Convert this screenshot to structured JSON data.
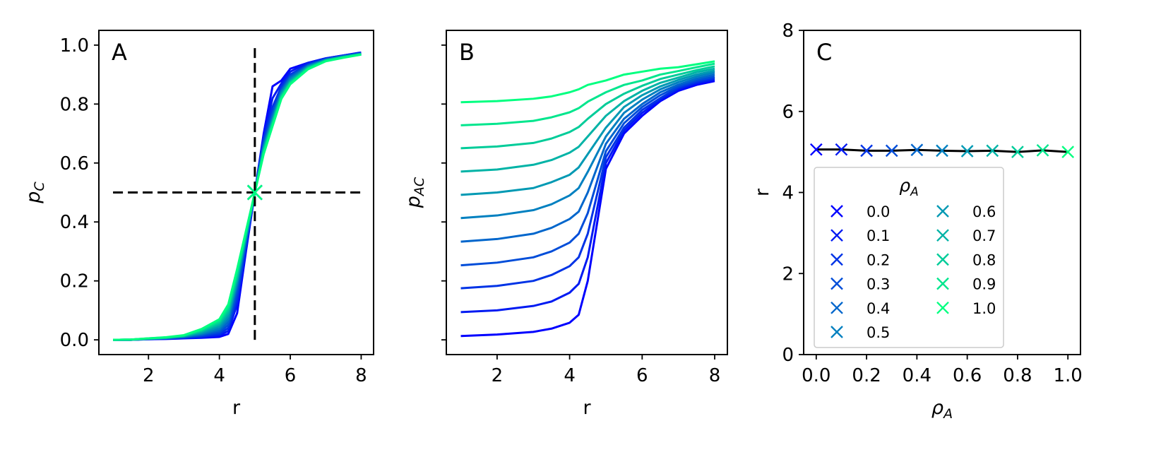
{
  "chart_data": [
    {
      "panel": "A",
      "type": "line",
      "panel_label": "A",
      "xlabel": "r",
      "ylabel_main": "p",
      "ylabel_sub": "C",
      "xlim": [
        0.6,
        8.35
      ],
      "ylim": [
        -0.05,
        1.05
      ],
      "xticks": [
        2,
        4,
        6,
        8
      ],
      "yticks": [
        0.0,
        0.2,
        0.4,
        0.6,
        0.8,
        1.0
      ],
      "ytick_labels": [
        "0.0",
        "0.2",
        "0.4",
        "0.6",
        "0.8",
        "1.0"
      ],
      "grid": false,
      "color_start": "#0000ff",
      "color_end": "#00ff80",
      "x": [
        1.0,
        1.5,
        2.0,
        2.5,
        3.0,
        3.5,
        4.0,
        4.25,
        4.5,
        4.75,
        5.0,
        5.25,
        5.5,
        5.75,
        6.0,
        6.5,
        7.0,
        7.5,
        8.0
      ],
      "series": [
        {
          "values": [
            0.0,
            0.0,
            0.002,
            0.003,
            0.005,
            0.007,
            0.01,
            0.02,
            0.09,
            0.3,
            0.5,
            0.7,
            0.86,
            0.88,
            0.92,
            0.94,
            0.955,
            0.965,
            0.975
          ]
        },
        {
          "values": [
            0.0,
            0.0,
            0.002,
            0.004,
            0.006,
            0.009,
            0.015,
            0.03,
            0.12,
            0.31,
            0.5,
            0.69,
            0.82,
            0.87,
            0.91,
            0.94,
            0.955,
            0.965,
            0.974
          ]
        },
        {
          "values": [
            0.0,
            0.0,
            0.003,
            0.005,
            0.008,
            0.012,
            0.02,
            0.04,
            0.14,
            0.32,
            0.5,
            0.68,
            0.79,
            0.86,
            0.9,
            0.935,
            0.953,
            0.964,
            0.973
          ]
        },
        {
          "values": [
            0.0,
            0.0,
            0.003,
            0.005,
            0.009,
            0.015,
            0.026,
            0.05,
            0.16,
            0.33,
            0.5,
            0.67,
            0.77,
            0.85,
            0.895,
            0.932,
            0.952,
            0.963,
            0.972
          ]
        },
        {
          "values": [
            0.0,
            0.0,
            0.003,
            0.006,
            0.01,
            0.018,
            0.032,
            0.06,
            0.18,
            0.34,
            0.5,
            0.66,
            0.76,
            0.845,
            0.89,
            0.93,
            0.951,
            0.962,
            0.971
          ]
        },
        {
          "values": [
            0.0,
            0.0,
            0.004,
            0.006,
            0.011,
            0.021,
            0.038,
            0.07,
            0.19,
            0.345,
            0.5,
            0.655,
            0.75,
            0.84,
            0.885,
            0.928,
            0.95,
            0.961,
            0.97
          ]
        },
        {
          "values": [
            0.0,
            0.001,
            0.004,
            0.007,
            0.012,
            0.024,
            0.045,
            0.08,
            0.2,
            0.35,
            0.5,
            0.65,
            0.745,
            0.835,
            0.88,
            0.926,
            0.949,
            0.96,
            0.97
          ]
        },
        {
          "values": [
            0.0,
            0.001,
            0.004,
            0.007,
            0.013,
            0.028,
            0.052,
            0.09,
            0.21,
            0.355,
            0.5,
            0.645,
            0.74,
            0.83,
            0.876,
            0.924,
            0.948,
            0.96,
            0.969
          ]
        },
        {
          "values": [
            0.0,
            0.001,
            0.004,
            0.008,
            0.014,
            0.031,
            0.058,
            0.1,
            0.22,
            0.36,
            0.5,
            0.64,
            0.735,
            0.826,
            0.873,
            0.922,
            0.947,
            0.959,
            0.969
          ]
        },
        {
          "values": [
            0.0,
            0.001,
            0.005,
            0.008,
            0.015,
            0.034,
            0.064,
            0.11,
            0.23,
            0.365,
            0.5,
            0.635,
            0.73,
            0.822,
            0.87,
            0.92,
            0.946,
            0.958,
            0.968
          ]
        },
        {
          "values": [
            0.0,
            0.001,
            0.005,
            0.009,
            0.016,
            0.037,
            0.07,
            0.12,
            0.24,
            0.37,
            0.5,
            0.63,
            0.725,
            0.818,
            0.867,
            0.918,
            0.945,
            0.957,
            0.968
          ]
        }
      ],
      "crosshair": {
        "x": 5.0,
        "y": 0.5,
        "vline_y": [
          0.0,
          1.0
        ],
        "hline_x": [
          1.0,
          8.0
        ],
        "color": "#000000"
      },
      "markers": [
        {
          "x": 5.0,
          "y": 0.5
        }
      ]
    },
    {
      "panel": "B",
      "type": "line",
      "panel_label": "B",
      "xlabel": "r",
      "ylabel_main": "p",
      "ylabel_sub": "AC",
      "xlim": [
        0.6,
        8.35
      ],
      "ylim": [
        -0.05,
        1.05
      ],
      "xticks": [
        2,
        4,
        6,
        8
      ],
      "yticks": [
        0.0,
        0.2,
        0.4,
        0.6,
        0.8,
        1.0
      ],
      "ytick_labels": [],
      "grid": false,
      "color_start": "#0000ff",
      "color_end": "#00ff80",
      "x": [
        1.0,
        2.0,
        3.0,
        3.5,
        4.0,
        4.25,
        4.5,
        5.0,
        5.5,
        6.0,
        6.5,
        7.0,
        7.5,
        8.0
      ],
      "series": [
        {
          "values": [
            0.013,
            0.018,
            0.027,
            0.038,
            0.058,
            0.085,
            0.2,
            0.58,
            0.7,
            0.76,
            0.81,
            0.845,
            0.865,
            0.878
          ]
        },
        {
          "values": [
            0.094,
            0.1,
            0.115,
            0.13,
            0.16,
            0.19,
            0.28,
            0.6,
            0.71,
            0.77,
            0.815,
            0.85,
            0.87,
            0.883
          ]
        },
        {
          "values": [
            0.175,
            0.183,
            0.2,
            0.22,
            0.25,
            0.28,
            0.36,
            0.62,
            0.72,
            0.78,
            0.82,
            0.855,
            0.875,
            0.888
          ]
        },
        {
          "values": [
            0.253,
            0.262,
            0.28,
            0.3,
            0.33,
            0.36,
            0.43,
            0.64,
            0.735,
            0.79,
            0.83,
            0.86,
            0.88,
            0.893
          ]
        },
        {
          "values": [
            0.333,
            0.342,
            0.36,
            0.38,
            0.41,
            0.435,
            0.5,
            0.665,
            0.75,
            0.8,
            0.84,
            0.866,
            0.886,
            0.9
          ]
        },
        {
          "values": [
            0.413,
            0.422,
            0.44,
            0.46,
            0.49,
            0.515,
            0.57,
            0.69,
            0.77,
            0.815,
            0.85,
            0.874,
            0.893,
            0.907
          ]
        },
        {
          "values": [
            0.492,
            0.5,
            0.515,
            0.535,
            0.56,
            0.585,
            0.63,
            0.72,
            0.79,
            0.83,
            0.86,
            0.882,
            0.9,
            0.913
          ]
        },
        {
          "values": [
            0.571,
            0.578,
            0.594,
            0.61,
            0.635,
            0.655,
            0.69,
            0.76,
            0.81,
            0.845,
            0.872,
            0.89,
            0.908,
            0.92
          ]
        },
        {
          "values": [
            0.65,
            0.656,
            0.668,
            0.683,
            0.705,
            0.722,
            0.75,
            0.8,
            0.835,
            0.862,
            0.885,
            0.9,
            0.915,
            0.928
          ]
        },
        {
          "values": [
            0.728,
            0.733,
            0.743,
            0.755,
            0.772,
            0.786,
            0.808,
            0.84,
            0.865,
            0.88,
            0.9,
            0.912,
            0.925,
            0.937
          ]
        },
        {
          "values": [
            0.806,
            0.81,
            0.818,
            0.826,
            0.84,
            0.85,
            0.865,
            0.88,
            0.9,
            0.91,
            0.92,
            0.925,
            0.935,
            0.945
          ]
        }
      ]
    },
    {
      "panel": "C",
      "type": "scatter",
      "panel_label": "C",
      "xlabel_main": "ρ",
      "xlabel_sub": "A",
      "ylabel": "r",
      "xlim": [
        -0.05,
        1.05
      ],
      "ylim": [
        0,
        8
      ],
      "xticks": [
        0.0,
        0.2,
        0.4,
        0.6,
        0.8,
        1.0
      ],
      "xtick_labels": [
        "0.0",
        "0.2",
        "0.4",
        "0.6",
        "0.8",
        "1.0"
      ],
      "yticks": [
        0,
        2,
        4,
        6,
        8
      ],
      "ytick_labels": [
        "0",
        "2",
        "4",
        "6",
        "8"
      ],
      "grid": false,
      "line_color": "#000000",
      "color_start": "#0000ff",
      "color_end": "#00ff80",
      "points": [
        {
          "x": 0.0,
          "y": 5.06
        },
        {
          "x": 0.1,
          "y": 5.06
        },
        {
          "x": 0.2,
          "y": 5.03
        },
        {
          "x": 0.3,
          "y": 5.03
        },
        {
          "x": 0.4,
          "y": 5.05
        },
        {
          "x": 0.5,
          "y": 5.03
        },
        {
          "x": 0.6,
          "y": 5.02
        },
        {
          "x": 0.7,
          "y": 5.03
        },
        {
          "x": 0.8,
          "y": 5.0
        },
        {
          "x": 0.9,
          "y": 5.04
        },
        {
          "x": 1.0,
          "y": 5.0
        }
      ],
      "legend": {
        "title_main": "ρ",
        "title_sub": "A",
        "placement": "center-left",
        "ncols": 2,
        "entries": [
          "0.0",
          "0.1",
          "0.2",
          "0.3",
          "0.4",
          "0.5",
          "0.6",
          "0.7",
          "0.8",
          "0.9",
          "1.0"
        ]
      }
    }
  ]
}
